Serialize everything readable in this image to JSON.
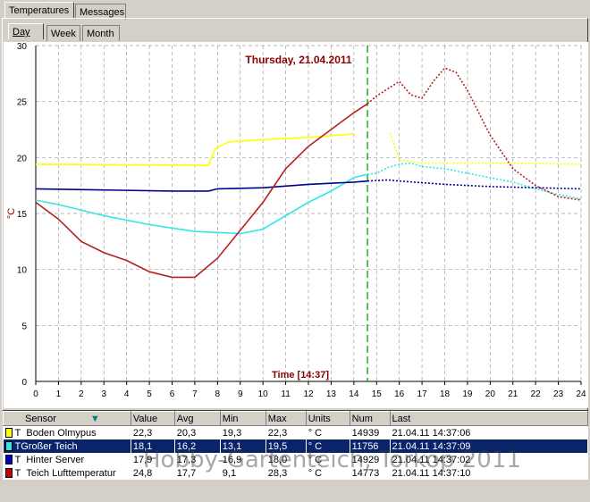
{
  "tabs": {
    "temperatures": "Temperatures",
    "messages": "Messages"
  },
  "subtabs": {
    "day": "Day",
    "week": "Week",
    "month": "Month"
  },
  "chart_data": {
    "type": "line",
    "title": "Thursday, 21.04.2011",
    "xlabel": "Time [14:37]",
    "ylabel": "°C",
    "xlim": [
      0,
      24
    ],
    "ylim": [
      0,
      30
    ],
    "xticks": [
      "0",
      "1",
      "2",
      "3",
      "4",
      "5",
      "6",
      "7",
      "8",
      "9",
      "10",
      "11",
      "12",
      "13",
      "14",
      "15",
      "16",
      "17",
      "18",
      "19",
      "20",
      "21",
      "22",
      "23",
      "24"
    ],
    "yticks": [
      "0",
      "5",
      "10",
      "15",
      "20",
      "25",
      "30"
    ],
    "now_marker": 14.6,
    "grid": true,
    "series": [
      {
        "name": "Boden Olmypus",
        "color": "#ffff00",
        "dotted_after": 14.6,
        "x": [
          0,
          7.6,
          7.9,
          8.5,
          10,
          12,
          14,
          15.6,
          16,
          17,
          20,
          24
        ],
        "y": [
          19.4,
          19.3,
          20.8,
          21.4,
          21.6,
          21.8,
          22.1,
          22.2,
          19.8,
          19.5,
          19.5,
          19.4
        ]
      },
      {
        "name": "Großer Teich",
        "color": "#33e5e5",
        "dotted_after": 14.6,
        "x": [
          0,
          1,
          3,
          5,
          7,
          9,
          10,
          11,
          12,
          13,
          14,
          14.6,
          15,
          15.5,
          16,
          16.5,
          17,
          18,
          19,
          20,
          21,
          22,
          23,
          24
        ],
        "y": [
          16.2,
          15.8,
          14.8,
          14.0,
          13.4,
          13.2,
          13.6,
          14.8,
          16.0,
          17.0,
          18.2,
          18.5,
          18.6,
          19.1,
          19.4,
          19.5,
          19.2,
          19.0,
          18.6,
          18.2,
          17.8,
          17.2,
          16.7,
          16.3
        ]
      },
      {
        "name": "Hinter Server",
        "color": "#00008b",
        "dotted_after": 14.6,
        "x": [
          0,
          3,
          6,
          7.6,
          8,
          10,
          12,
          14,
          14.6,
          15.5,
          16,
          18,
          20,
          24
        ],
        "y": [
          17.2,
          17.1,
          17.0,
          17.0,
          17.2,
          17.3,
          17.6,
          17.8,
          17.9,
          18.0,
          17.9,
          17.6,
          17.4,
          17.2
        ]
      },
      {
        "name": "Teich Lufttemperatur",
        "color": "#b22222",
        "dotted_after": 14.6,
        "x": [
          0,
          1,
          2,
          3,
          4,
          5,
          6,
          7,
          8,
          9,
          10,
          11,
          12,
          13,
          14,
          14.6,
          15,
          16,
          16.5,
          17,
          17.5,
          18,
          18.5,
          19,
          20,
          21,
          22,
          23,
          24
        ],
        "y": [
          16.0,
          14.5,
          12.5,
          11.5,
          10.8,
          9.8,
          9.3,
          9.3,
          11.0,
          13.5,
          16.0,
          19.0,
          21.0,
          22.5,
          24.0,
          24.8,
          25.5,
          26.8,
          25.6,
          25.3,
          26.8,
          28.0,
          27.6,
          26.0,
          22.0,
          19.0,
          17.5,
          16.5,
          16.2
        ]
      }
    ]
  },
  "table": {
    "headers": {
      "sensor": "Sensor",
      "value": "Value",
      "avg": "Avg",
      "min": "Min",
      "max": "Max",
      "units": "Units",
      "num": "Num",
      "last": "Last"
    },
    "rows": [
      {
        "type": "T",
        "name": "Boden Olmypus",
        "value": "22,3",
        "avg": "20,3",
        "min": "19,3",
        "max": "22,3",
        "units": "° C",
        "num": "14939",
        "last": "21.04.11 14:37:06",
        "color": "#ffff00"
      },
      {
        "type": "T",
        "name": "Großer Teich",
        "value": "18,1",
        "avg": "16,2",
        "min": "13,1",
        "max": "19,5",
        "units": "° C",
        "num": "11756",
        "last": "21.04.11 14:37:09",
        "color": "#33e5e5"
      },
      {
        "type": "T",
        "name": "Hinter Server",
        "value": "17,9",
        "avg": "17,3",
        "min": "16,9",
        "max": "18,0",
        "units": "° C",
        "num": "14929",
        "last": "21.04.11 14:37:02",
        "color": "#0000cc"
      },
      {
        "type": "T",
        "name": "Teich Lufttemperatur",
        "value": "24,8",
        "avg": "17,7",
        "min": "9,1",
        "max": "28,3",
        "units": "° C",
        "num": "14773",
        "last": "21.04.11 14:37:10",
        "color": "#cc0000"
      }
    ]
  },
  "watermark": "Hobby-Gartenteich, Torkop 2011"
}
